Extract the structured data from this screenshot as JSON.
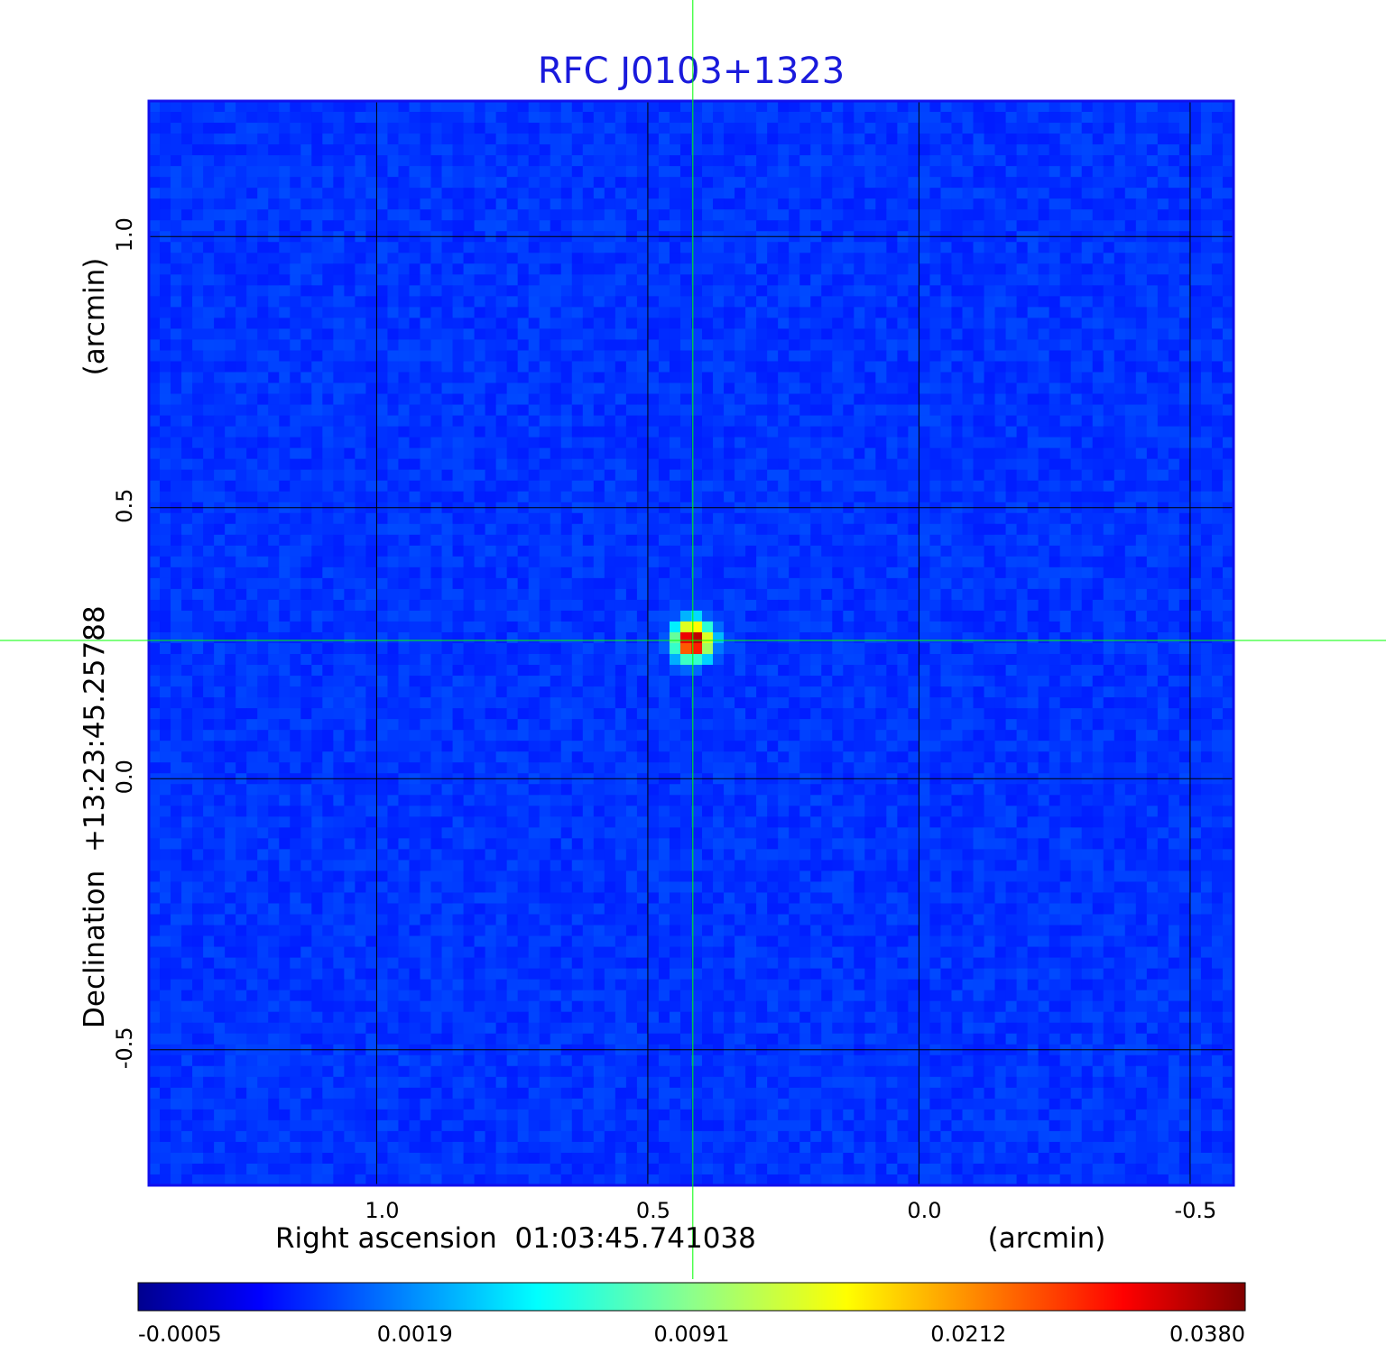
{
  "chart_data": {
    "type": "heatmap",
    "title": "RFC J0103+1323",
    "xlabel": "Right ascension  01:03:45.741038",
    "xunit": "(arcmin)",
    "ylabel": "Declination  +13:23:45.25788",
    "yunit": "(arcmin)",
    "x_ticks": [
      "1.0",
      "0.5",
      "0.0",
      "-0.5"
    ],
    "x_tick_values": [
      1.0,
      0.5,
      0.0,
      -0.5
    ],
    "y_ticks": [
      "1.0",
      "0.5",
      "0.0",
      "-0.5"
    ],
    "y_tick_values": [
      1.0,
      0.5,
      0.0,
      -0.5
    ],
    "xlim": [
      1.42,
      -0.58
    ],
    "ylim": [
      -0.75,
      1.25
    ],
    "x_direction": "decreasing-to-right",
    "grid": true,
    "crosshair": {
      "x": 0.417,
      "y": 0.255,
      "color": "#00ff00"
    },
    "source": {
      "x": 0.417,
      "y": 0.255,
      "peak": 0.038
    },
    "colorbar": {
      "position": "bottom",
      "colormap": "jet",
      "tick_labels": [
        "-0.0005",
        "0.0019",
        "0.0091",
        "0.0212",
        "0.0380"
      ],
      "tick_values": [
        -0.0005,
        0.0019,
        0.0091,
        0.0212,
        0.038
      ]
    },
    "background_level": 0.0003,
    "colors": {
      "title": "#1a1adc",
      "frame": "#1010ee",
      "grid": "#000000",
      "crosshair": "#00ff00"
    }
  }
}
